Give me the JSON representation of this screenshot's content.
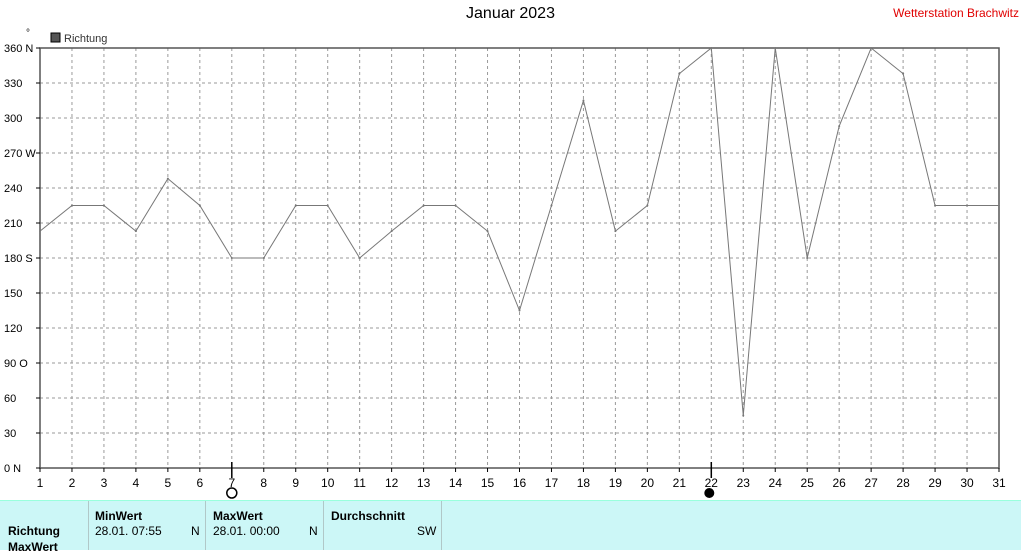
{
  "header": {
    "title": "Januar 2023",
    "station": "Wetterstation Brachwitz",
    "unit_mark": "°"
  },
  "legend": {
    "label": "Richtung",
    "color": "#555555"
  },
  "colors": {
    "line": "#777777",
    "grid": "#9a9a9a",
    "frame": "#555555"
  },
  "chart_data": {
    "type": "line",
    "title": "Januar 2023",
    "xlabel": "",
    "ylabel": "°",
    "xlim": [
      1,
      31
    ],
    "ylim": [
      0,
      360
    ],
    "grid": true,
    "legend_position": "top-left",
    "x": [
      1,
      2,
      3,
      4,
      5,
      6,
      7,
      8,
      9,
      10,
      11,
      12,
      13,
      14,
      15,
      16,
      17,
      18,
      19,
      20,
      21,
      22,
      23,
      24,
      25,
      26,
      27,
      28,
      29,
      30,
      31
    ],
    "x_ticks": [
      "1",
      "2",
      "3",
      "4",
      "5",
      "6",
      "7",
      "8",
      "9",
      "10",
      "11",
      "12",
      "13",
      "14",
      "15",
      "16",
      "17",
      "18",
      "19",
      "20",
      "21",
      "22",
      "23",
      "24",
      "25",
      "26",
      "27",
      "28",
      "29",
      "30",
      "31"
    ],
    "y_ticks": [
      {
        "value": 360,
        "label": "360 N"
      },
      {
        "value": 330,
        "label": "330"
      },
      {
        "value": 300,
        "label": "300"
      },
      {
        "value": 270,
        "label": "270 W"
      },
      {
        "value": 240,
        "label": "240"
      },
      {
        "value": 210,
        "label": "210"
      },
      {
        "value": 180,
        "label": "180 S"
      },
      {
        "value": 150,
        "label": "150"
      },
      {
        "value": 120,
        "label": "120"
      },
      {
        "value": 90,
        "label": "90  O"
      },
      {
        "value": 60,
        "label": "60"
      },
      {
        "value": 30,
        "label": "30"
      },
      {
        "value": 0,
        "label": "0   N"
      }
    ],
    "series": [
      {
        "name": "Richtung",
        "values": [
          203,
          225,
          225,
          203,
          248,
          225,
          180,
          180,
          225,
          225,
          180,
          203,
          225,
          225,
          203,
          135,
          225,
          315,
          203,
          225,
          338,
          360,
          45,
          360,
          180,
          293,
          360,
          338,
          225,
          225,
          225
        ]
      }
    ],
    "markers": [
      {
        "x": 7,
        "kind": "open-circle"
      },
      {
        "x": 22,
        "kind": "filled-circle"
      }
    ]
  },
  "stats": {
    "row_label": "Richtung",
    "row_label_2": "MaxWert",
    "min": {
      "header": "MinWert",
      "time": "28.01.  07:55",
      "dir": "N"
    },
    "max": {
      "header": "MaxWert",
      "time": "28.01.  00:00",
      "dir": "N"
    },
    "avg": {
      "header": "Durchschnitt",
      "dir": "SW"
    }
  }
}
